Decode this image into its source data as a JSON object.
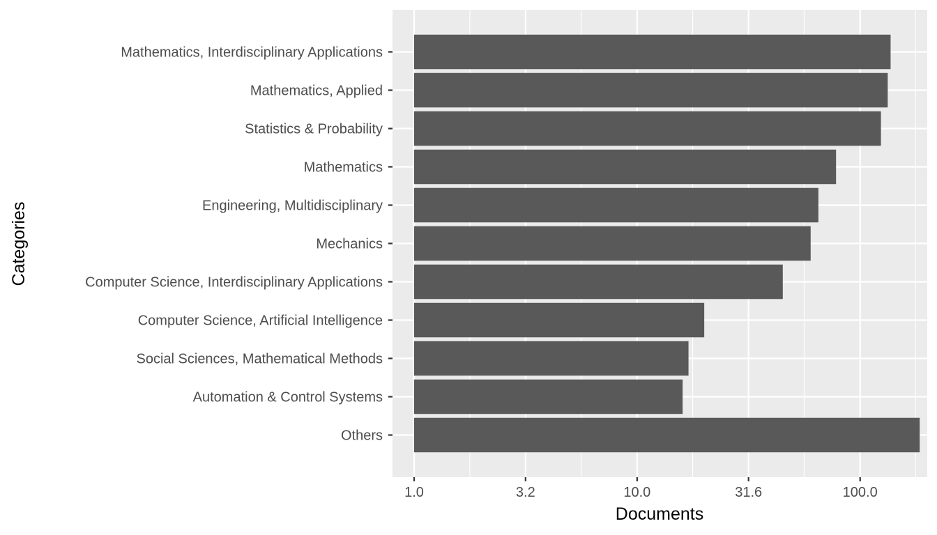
{
  "chart_data": {
    "type": "bar",
    "orientation": "horizontal",
    "xlabel": "Documents",
    "ylabel": "Categories",
    "x_scale": "log10",
    "xlim": [
      0.8,
      200
    ],
    "x_ticks": [
      1.0,
      3.16,
      10.0,
      31.6,
      100.0
    ],
    "x_tick_labels": [
      "1.0",
      "3.2",
      "10.0",
      "31.6",
      "100.0"
    ],
    "grid": true,
    "panel_background": "#ebebeb",
    "bar_color": "#595959",
    "categories": [
      "Mathematics, Interdisciplinary Applications",
      "Mathematics, Applied",
      "Statistics & Probability",
      "Mathematics",
      "Engineering, Multidisciplinary",
      "Mechanics",
      "Computer Science, Interdisciplinary Applications",
      "Computer Science, Artificial Intelligence",
      "Social Sciences, Mathematical Methods",
      "Automation & Control Systems",
      "Others"
    ],
    "values": [
      137,
      133,
      124,
      78,
      65,
      60,
      45,
      20,
      17,
      16,
      185
    ]
  }
}
